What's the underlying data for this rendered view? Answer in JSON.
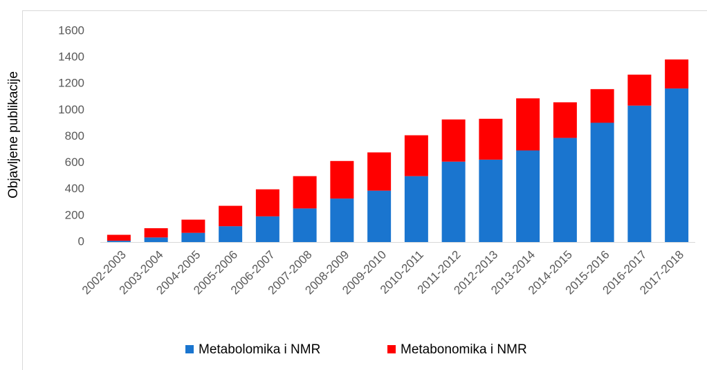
{
  "chart_data": {
    "type": "stacked_bar",
    "y_label": "Objavljene publikacije",
    "categories": [
      "2002-2003",
      "2003-2004",
      "2004-2005",
      "2005-2006",
      "2006-2007",
      "2007-2008",
      "2008-2009",
      "2009-2010",
      "2010-2011",
      "2011-2012",
      "2012-2013",
      "2013-2014",
      "2014-2015",
      "2015-2016",
      "2016-2017",
      "2017-2018"
    ],
    "series": [
      {
        "name": "Metabolomika i NMR",
        "color": "#1a75cf",
        "values": [
          10,
          35,
          70,
          120,
          195,
          255,
          330,
          390,
          500,
          610,
          625,
          695,
          790,
          905,
          1035,
          1165
        ]
      },
      {
        "name": "Metabonomika i NMR",
        "color": "#ff0000",
        "values": [
          45,
          70,
          100,
          155,
          205,
          245,
          285,
          290,
          310,
          320,
          310,
          395,
          270,
          255,
          235,
          220
        ]
      }
    ],
    "ylim": [
      0,
      1600
    ],
    "yticks": [
      0,
      200,
      400,
      600,
      800,
      1000,
      1200,
      1400,
      1600
    ],
    "grid": false,
    "legend": "bottom"
  }
}
